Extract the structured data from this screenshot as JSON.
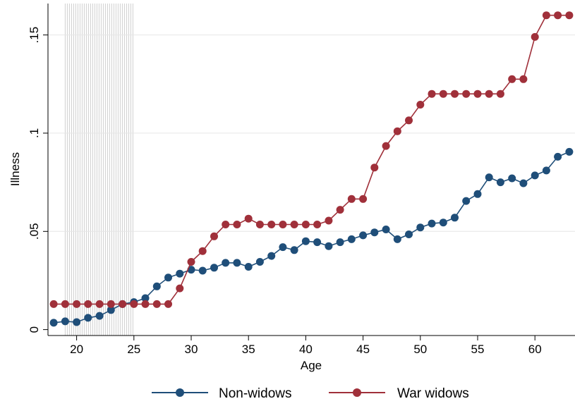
{
  "chart_data": {
    "type": "line",
    "xlabel": "Age",
    "ylabel": "Illness",
    "xlim": [
      17.5,
      63.5
    ],
    "ylim": [
      -0.003,
      0.166
    ],
    "x_ticks": [
      20,
      25,
      30,
      35,
      40,
      45,
      50,
      55,
      60
    ],
    "y_ticks": [
      {
        "value": 0,
        "label": "0"
      },
      {
        "value": 0.05,
        "label": ".05"
      },
      {
        "value": 0.1,
        "label": ".1"
      },
      {
        "value": 0.15,
        "label": ".15"
      }
    ],
    "grid": "horizontal",
    "shaded_range": [
      19,
      25
    ],
    "legend_position": "bottom",
    "x": [
      18,
      19,
      20,
      21,
      22,
      23,
      24,
      25,
      26,
      27,
      28,
      29,
      30,
      31,
      32,
      33,
      34,
      35,
      36,
      37,
      38,
      39,
      40,
      41,
      42,
      43,
      44,
      45,
      46,
      47,
      48,
      49,
      50,
      51,
      52,
      53,
      54,
      55,
      56,
      57,
      58,
      59,
      60,
      61,
      62,
      63
    ],
    "series": [
      {
        "name": "Non-widows",
        "color": "#1f4e79",
        "values": [
          0.0035,
          0.0042,
          0.0038,
          0.006,
          0.007,
          0.01,
          0.013,
          0.014,
          0.016,
          0.022,
          0.0265,
          0.0285,
          0.0305,
          0.03,
          0.0315,
          0.034,
          0.034,
          0.032,
          0.0345,
          0.0375,
          0.042,
          0.0405,
          0.045,
          0.0445,
          0.0425,
          0.0445,
          0.046,
          0.048,
          0.0495,
          0.051,
          0.046,
          0.0485,
          0.052,
          0.054,
          0.0545,
          0.057,
          0.0655,
          0.069,
          0.0775,
          0.075,
          0.077,
          0.0745,
          0.0785,
          0.081,
          0.088,
          0.0905
        ]
      },
      {
        "name": "War widows",
        "color": "#a0303a",
        "values": [
          0.013,
          0.013,
          0.013,
          0.013,
          0.013,
          0.013,
          0.013,
          0.013,
          0.013,
          0.013,
          0.013,
          0.021,
          0.0345,
          0.04,
          0.0475,
          0.0535,
          0.0535,
          0.0565,
          0.0535,
          0.0535,
          0.0535,
          0.0535,
          0.0535,
          0.0535,
          0.0555,
          0.061,
          0.0665,
          0.0665,
          0.0825,
          0.0935,
          0.101,
          0.1065,
          0.1145,
          0.12,
          0.12,
          0.12,
          0.12,
          0.12,
          0.12,
          0.12,
          0.1275,
          0.1275,
          0.149,
          0.16,
          0.16,
          0.16
        ]
      }
    ]
  }
}
